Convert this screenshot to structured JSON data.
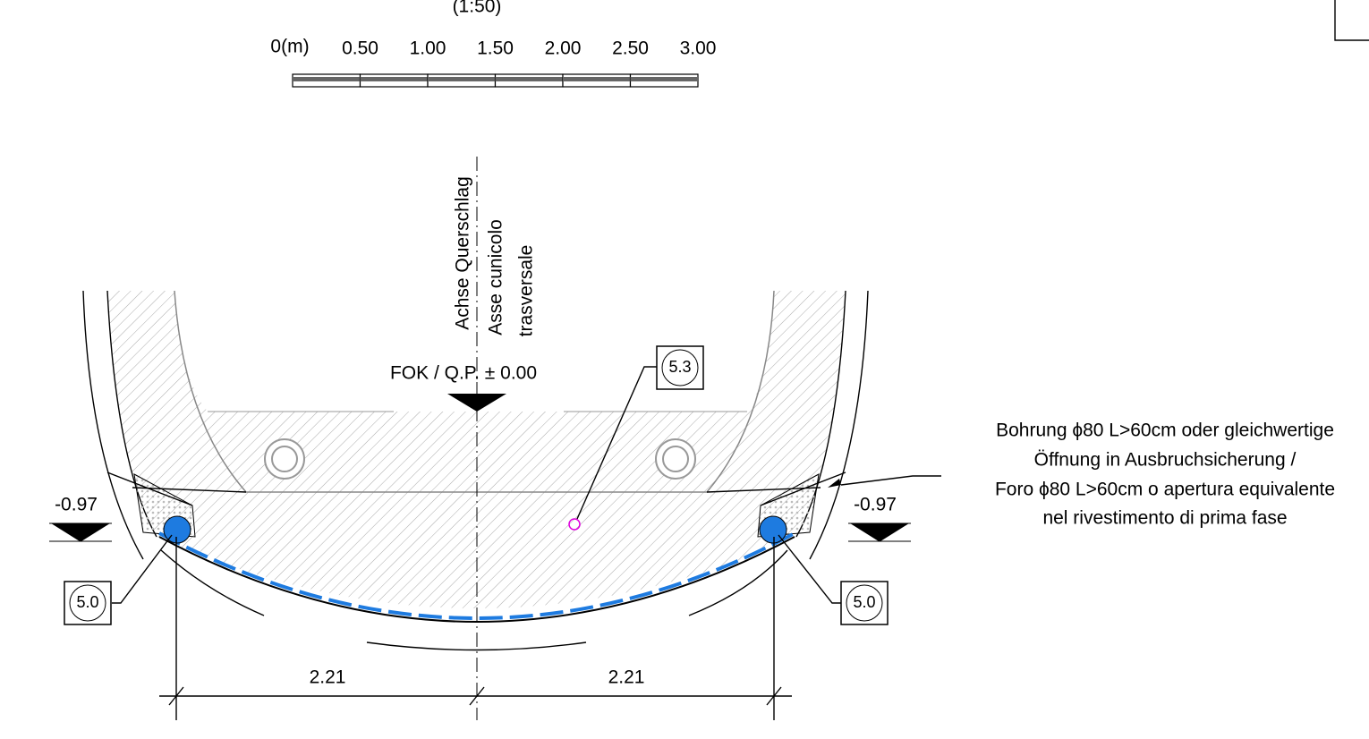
{
  "scale": {
    "title": "(1:50)",
    "labels": [
      "0(m)",
      "0.50",
      "1.00",
      "1.50",
      "2.00",
      "2.50",
      "3.00"
    ]
  },
  "axis_label": [
    "Achse Querschlag",
    "Asse cunicolo",
    "trasversale"
  ],
  "level": "FOK / Q.P. ± 0.00",
  "elevations": [
    "-0.97",
    "-0.97"
  ],
  "callouts": [
    "5.3",
    "5.0",
    "5.0"
  ],
  "dimensions": [
    "2.21",
    "2.21"
  ],
  "note": [
    "Bohrung ϕ80 L>60cm oder gleichwertige",
    "Öffnung in Ausbruchsicherung /",
    "Foro ϕ80 L>60cm o apertura equivalente",
    "nel rivestimento di prima fase"
  ]
}
